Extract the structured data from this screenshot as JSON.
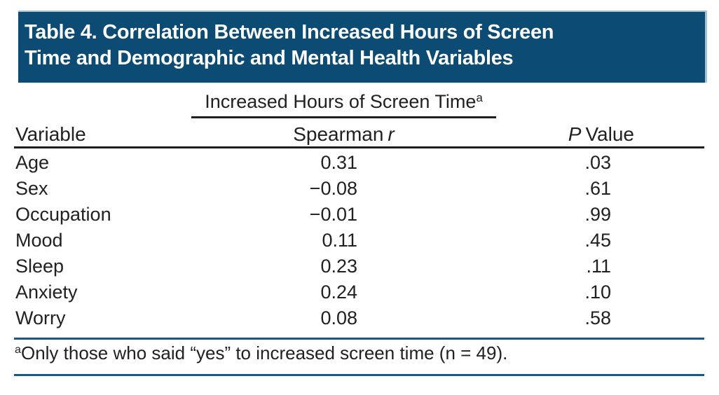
{
  "table": {
    "title": "Table 4. Correlation Between Increased Hours of Screen\nTime and Demographic and Mental Health Variables",
    "spanner": {
      "label": "Increased Hours of Screen Time",
      "marker": "a"
    },
    "columns": {
      "variable": "Variable",
      "spearman_prefix": "Spearman",
      "spearman_italic": "r",
      "p_italic": "P",
      "p_rest": "Value"
    },
    "rows": [
      {
        "variable": "Age",
        "spearman_r": "0.31",
        "p_value": ".03"
      },
      {
        "variable": "Sex",
        "spearman_r": "−0.08",
        "p_value": ".61"
      },
      {
        "variable": "Occupation",
        "spearman_r": "−0.01",
        "p_value": ".99"
      },
      {
        "variable": "Mood",
        "spearman_r": "0.11",
        "p_value": ".45"
      },
      {
        "variable": "Sleep",
        "spearman_r": "0.23",
        "p_value": ".11"
      },
      {
        "variable": "Anxiety",
        "spearman_r": "0.24",
        "p_value": ".10"
      },
      {
        "variable": "Worry",
        "spearman_r": "0.08",
        "p_value": ".58"
      }
    ],
    "footnote": {
      "marker": "a",
      "text": "Only those who said “yes” to increased screen time (n = 49)."
    }
  },
  "chart_data": {
    "type": "table",
    "title": "Table 4. Correlation Between Increased Hours of Screen Time and Demographic and Mental Health Variables",
    "column_group": {
      "label": "Increased Hours of Screen Time",
      "footnote_marker": "a",
      "spans": [
        "Spearman r"
      ]
    },
    "columns": [
      "Variable",
      "Spearman r",
      "P Value"
    ],
    "rows": [
      [
        "Age",
        "0.31",
        ".03"
      ],
      [
        "Sex",
        "−0.08",
        ".61"
      ],
      [
        "Occupation",
        "−0.01",
        ".99"
      ],
      [
        "Mood",
        "0.11",
        ".45"
      ],
      [
        "Sleep",
        "0.23",
        ".11"
      ],
      [
        "Anxiety",
        "0.24",
        ".10"
      ],
      [
        "Worry",
        "0.08",
        ".58"
      ]
    ],
    "footnotes": [
      {
        "marker": "a",
        "text": "Only those who said “yes” to increased screen time (n = 49)."
      }
    ]
  },
  "colors": {
    "header_bg": "#0b4b74",
    "header_border": "#a3c3d9",
    "rule_dark": "#1f1f1f",
    "rule_blue": "#16598a",
    "text": "#212121",
    "title_text": "#ffffff"
  }
}
